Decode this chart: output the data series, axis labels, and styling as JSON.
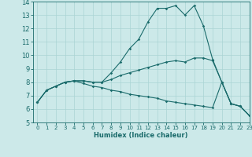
{
  "xlabel": "Humidex (Indice chaleur)",
  "xlim": [
    -0.5,
    23
  ],
  "ylim": [
    5,
    14
  ],
  "xticks": [
    0,
    1,
    2,
    3,
    4,
    5,
    6,
    7,
    8,
    9,
    10,
    11,
    12,
    13,
    14,
    15,
    16,
    17,
    18,
    19,
    20,
    21,
    22,
    23
  ],
  "yticks": [
    5,
    6,
    7,
    8,
    9,
    10,
    11,
    12,
    13,
    14
  ],
  "bg_color": "#cce9e9",
  "line_color": "#1a6b6b",
  "grid_color": "#aad4d4",
  "line1_x": [
    0,
    1,
    2,
    3,
    4,
    5,
    6,
    7,
    8,
    9,
    10,
    11,
    12,
    13,
    14,
    15,
    16,
    17,
    18,
    19,
    20,
    21,
    22,
    23
  ],
  "line1_y": [
    6.5,
    7.4,
    7.7,
    8.0,
    8.1,
    8.1,
    8.0,
    8.0,
    8.7,
    9.5,
    10.5,
    11.2,
    12.5,
    13.5,
    13.5,
    13.7,
    13.0,
    13.7,
    12.2,
    9.7,
    8.0,
    6.4,
    6.2,
    5.5
  ],
  "line2_x": [
    0,
    1,
    2,
    3,
    4,
    5,
    6,
    7,
    8,
    9,
    10,
    11,
    12,
    13,
    14,
    15,
    16,
    17,
    18,
    19,
    20,
    21,
    22,
    23
  ],
  "line2_y": [
    6.5,
    7.4,
    7.7,
    8.0,
    8.1,
    8.1,
    8.0,
    8.0,
    8.2,
    8.5,
    8.7,
    8.9,
    9.1,
    9.3,
    9.5,
    9.6,
    9.5,
    9.8,
    9.8,
    9.6,
    8.0,
    6.4,
    6.2,
    5.5
  ],
  "line3_x": [
    0,
    1,
    2,
    3,
    4,
    5,
    6,
    7,
    8,
    9,
    10,
    11,
    12,
    13,
    14,
    15,
    16,
    17,
    18,
    19,
    20,
    21,
    22,
    23
  ],
  "line3_y": [
    6.5,
    7.4,
    7.7,
    8.0,
    8.1,
    7.9,
    7.7,
    7.6,
    7.4,
    7.3,
    7.1,
    7.0,
    6.9,
    6.8,
    6.6,
    6.5,
    6.4,
    6.3,
    6.2,
    6.1,
    8.0,
    6.4,
    6.2,
    5.5
  ],
  "markersize": 1.8,
  "linewidth": 0.8
}
